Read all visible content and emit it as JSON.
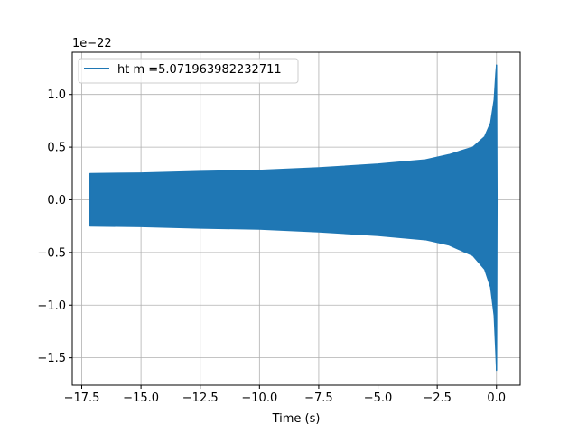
{
  "chart_data": {
    "type": "line",
    "title": "",
    "xlabel": "Time (s)",
    "ylabel": "",
    "offset_text": "1e−22",
    "xlim": [
      -17.9,
      1.0
    ],
    "ylim": [
      -1.76,
      1.4
    ],
    "x_ticks": [
      -17.5,
      -15.0,
      -12.5,
      -10.0,
      -7.5,
      -5.0,
      -2.5,
      0.0
    ],
    "x_tick_labels": [
      "−17.5",
      "−15.0",
      "−12.5",
      "−10.0",
      "−7.5",
      "−5.0",
      "−2.5",
      "0.0"
    ],
    "y_ticks": [
      -1.5,
      -1.0,
      -0.5,
      0.0,
      0.5,
      1.0
    ],
    "y_tick_labels": [
      "−1.5",
      "−1.0",
      "−0.5",
      "0.0",
      "0.5",
      "1.0"
    ],
    "grid": true,
    "legend_position": "top-left",
    "series": [
      {
        "name": "ht m =5.071963982232711",
        "color": "#1f77b4",
        "style": "oscillating-envelope",
        "x_start": -17.15,
        "x_end": 0.02,
        "upper_envelope": [
          {
            "x": -17.15,
            "y": 0.25
          },
          {
            "x": -15.0,
            "y": 0.255
          },
          {
            "x": -12.5,
            "y": 0.27
          },
          {
            "x": -10.0,
            "y": 0.28
          },
          {
            "x": -7.5,
            "y": 0.305
          },
          {
            "x": -5.0,
            "y": 0.34
          },
          {
            "x": -3.0,
            "y": 0.38
          },
          {
            "x": -2.0,
            "y": 0.43
          },
          {
            "x": -1.0,
            "y": 0.5
          },
          {
            "x": -0.5,
            "y": 0.6
          },
          {
            "x": -0.25,
            "y": 0.73
          },
          {
            "x": -0.1,
            "y": 0.95
          },
          {
            "x": -0.03,
            "y": 1.2
          },
          {
            "x": 0.0,
            "y": 1.28
          }
        ],
        "lower_envelope": [
          {
            "x": -17.15,
            "y": -0.25
          },
          {
            "x": -15.0,
            "y": -0.255
          },
          {
            "x": -12.5,
            "y": -0.27
          },
          {
            "x": -10.0,
            "y": -0.28
          },
          {
            "x": -7.5,
            "y": -0.305
          },
          {
            "x": -5.0,
            "y": -0.34
          },
          {
            "x": -3.0,
            "y": -0.38
          },
          {
            "x": -2.0,
            "y": -0.43
          },
          {
            "x": -1.0,
            "y": -0.53
          },
          {
            "x": -0.5,
            "y": -0.66
          },
          {
            "x": -0.25,
            "y": -0.83
          },
          {
            "x": -0.1,
            "y": -1.1
          },
          {
            "x": -0.03,
            "y": -1.45
          },
          {
            "x": 0.0,
            "y": -1.62
          }
        ]
      }
    ]
  }
}
